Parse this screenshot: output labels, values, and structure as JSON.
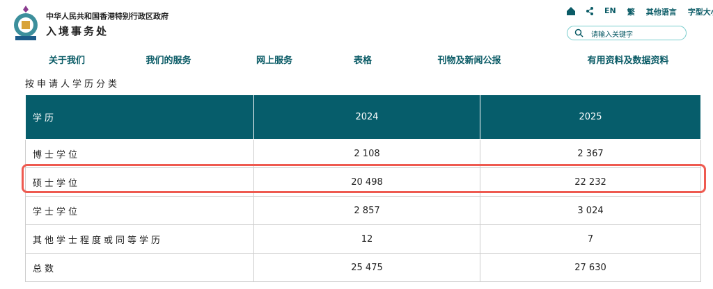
{
  "header": {
    "org_name": "中华人民共和国香港特别行政区政府",
    "dept_name": "入境事务处",
    "top_links": [
      "EN",
      "繁",
      "其他语言",
      "字型大小"
    ],
    "search_placeholder": "请输入关键字"
  },
  "nav": [
    "关于我们",
    "我们的服务",
    "网上服务",
    "表格",
    "刊物及新闻公报",
    "有用资料及数据资料"
  ],
  "table": {
    "caption": "按申请人学历分类",
    "columns": [
      "学历",
      "2024",
      "2025"
    ],
    "rows": [
      [
        "博士学位",
        "2 108",
        "2 367"
      ],
      [
        "硕士学位",
        "20 498",
        "22 232"
      ],
      [
        "学士学位",
        "2 857",
        "3 024"
      ],
      [
        "其他学士程度或同等学历",
        "12",
        "7"
      ],
      [
        "总数",
        "25 475",
        "27 630"
      ]
    ]
  }
}
